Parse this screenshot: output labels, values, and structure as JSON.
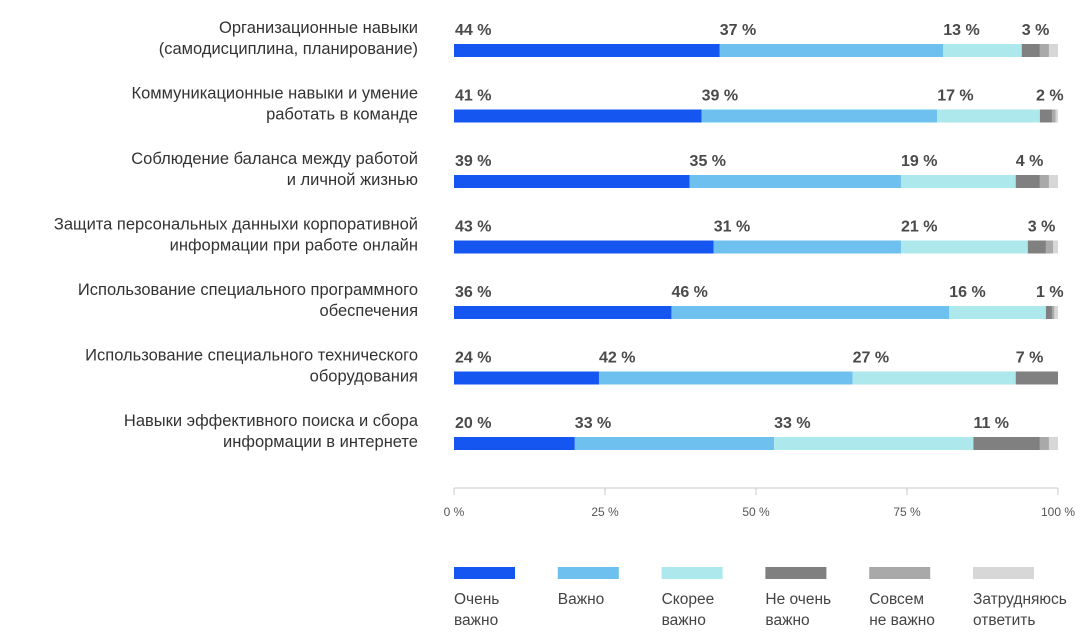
{
  "chart_data": {
    "type": "bar",
    "orientation": "horizontal",
    "stacked": true,
    "categories": [
      [
        "Организационные навыки",
        "(самодисциплина, планирование)"
      ],
      [
        "Коммуникационные навыки и умение",
        "работать в команде"
      ],
      [
        "Соблюдение баланса между работой",
        "и личной жизнью"
      ],
      [
        "Защита персональных данныхи корпоративной",
        "информации при работе онлайн"
      ],
      [
        "Использование специального программного",
        "обеспечения"
      ],
      [
        "Использование специального технического",
        "оборудования"
      ],
      [
        "Навыки эффективного поиска и сбора",
        "информации в интернете"
      ]
    ],
    "series": [
      {
        "name": "Очень важно",
        "legend_lines": [
          "Очень",
          "важно"
        ],
        "color": "#1555f0",
        "values": [
          44,
          41,
          39,
          43,
          36,
          24,
          20
        ],
        "labels": [
          "44 %",
          "41 %",
          "39 %",
          "43 %",
          "36 %",
          "24 %",
          "20 %"
        ]
      },
      {
        "name": "Важно",
        "legend_lines": [
          "Важно"
        ],
        "color": "#6ec0ee",
        "values": [
          37,
          39,
          35,
          31,
          46,
          42,
          33
        ],
        "labels": [
          "37 %",
          "39 %",
          "35 %",
          "31 %",
          "46 %",
          "42 %",
          "33 %"
        ]
      },
      {
        "name": "Скорее важно",
        "legend_lines": [
          "Скорее",
          "важно"
        ],
        "color": "#ade8ec",
        "values": [
          13,
          17,
          19,
          21,
          16,
          27,
          33
        ],
        "labels": [
          "13 %",
          "17 %",
          "19 %",
          "21 %",
          "16 %",
          "27 %",
          "33 %"
        ]
      },
      {
        "name": "Не очень важно",
        "legend_lines": [
          "Не очень",
          "важно"
        ],
        "color": "#808080",
        "values": [
          3,
          2,
          4,
          3,
          1,
          7,
          11
        ],
        "labels": [
          "3 %",
          "2 %",
          "4 %",
          "3 %",
          "1 %",
          "7 %",
          "11 %"
        ]
      },
      {
        "name": "Совсем не важно",
        "legend_lines": [
          "Совсем",
          "не важно"
        ],
        "color": "#a9a9a9",
        "values": [
          1.5,
          0.6,
          1.5,
          1.2,
          0.4,
          0,
          1.5
        ],
        "labels": [
          "",
          "",
          "",
          "",
          "",
          "",
          ""
        ]
      },
      {
        "name": "Затрудняюсь ответить",
        "legend_lines": [
          "Затрудняюсь",
          "ответить"
        ],
        "color": "#d7d7d7",
        "values": [
          1.5,
          0.4,
          1.5,
          0.8,
          0.6,
          0,
          1.5
        ],
        "labels": [
          "",
          "",
          "",
          "",
          "",
          "",
          ""
        ]
      }
    ],
    "xlim": [
      0,
      100
    ],
    "xticks": [
      {
        "value": 0,
        "label": "0 %"
      },
      {
        "value": 25,
        "label": "25 %"
      },
      {
        "value": 50,
        "label": "50 %"
      },
      {
        "value": 75,
        "label": "75 %"
      },
      {
        "value": 100,
        "label": "100 %"
      }
    ],
    "legend_position": "bottom",
    "grid": false
  },
  "colors": {
    "category_text": "#333333",
    "value_text": "#4a4a4a",
    "axis": "#c8c8c8"
  }
}
